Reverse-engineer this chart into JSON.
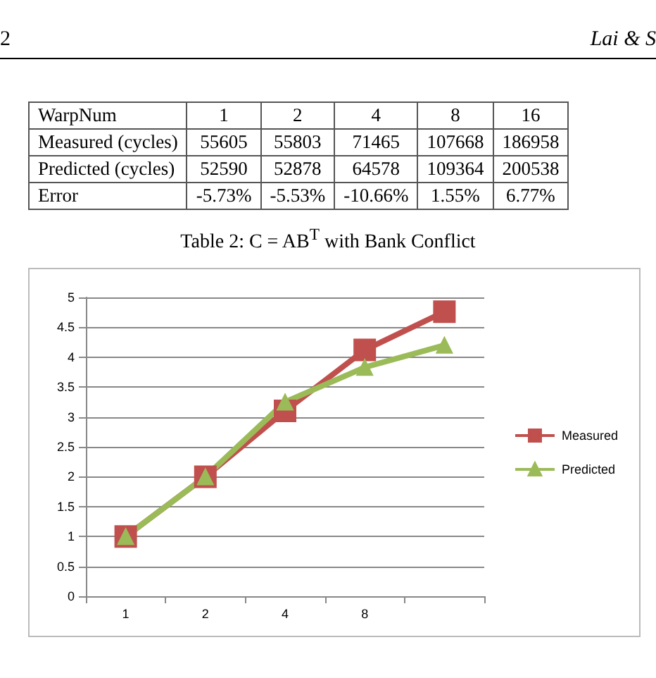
{
  "chart_data": [
    {
      "type": "other",
      "annotations": [
        "2",
        "Lai & S",
        "WarpNum",
        "1",
        "2",
        "4",
        "8",
        "16",
        "Measured (cycles)",
        "55605",
        "55803",
        "71465",
        "107668",
        "186958",
        "Predicted (cycles)",
        "52590",
        "52878",
        "64578",
        "109364",
        "200538",
        "Error",
        "-5.73%",
        "-5.53%",
        "-10.66%",
        "1.55%",
        "6.77%",
        "Table 2: C = AB$^{T}$ with Bank Conflict"
      ]
    },
    {
      "type": "line",
      "categories": [
        "1",
        "2",
        "4",
        "8",
        null
      ],
      "series": [
        {
          "name": "Measured",
          "color": "#c0504d",
          "marker": "square",
          "values": [
            1,
            2,
            3.1,
            4.12,
            4.76
          ]
        },
        {
          "name": "Predicted",
          "color": "#9bbb59",
          "marker": "triangle",
          "values": [
            1,
            2,
            3.25,
            3.83,
            4.2
          ]
        }
      ],
      "ylim": [
        0,
        5
      ],
      "yticks": [
        0,
        0.5,
        1,
        1.5,
        2,
        2.5,
        3,
        3.5,
        4,
        4.5,
        5
      ],
      "grid": "y",
      "legend": "right"
    }
  ]
}
